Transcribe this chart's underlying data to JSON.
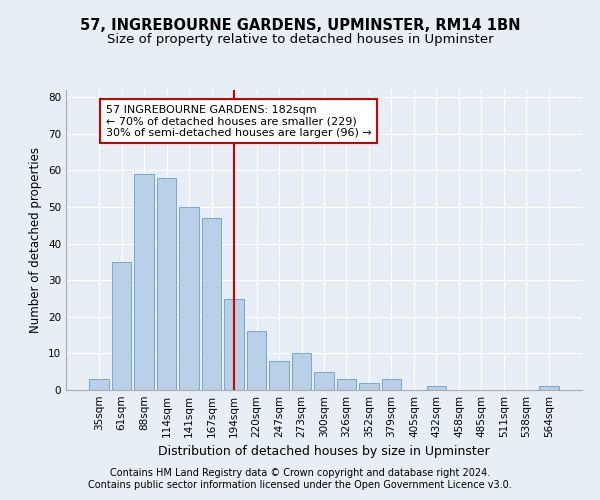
{
  "title1": "57, INGREBOURNE GARDENS, UPMINSTER, RM14 1BN",
  "title2": "Size of property relative to detached houses in Upminster",
  "xlabel": "Distribution of detached houses by size in Upminster",
  "ylabel": "Number of detached properties",
  "categories": [
    "35sqm",
    "61sqm",
    "88sqm",
    "114sqm",
    "141sqm",
    "167sqm",
    "194sqm",
    "220sqm",
    "247sqm",
    "273sqm",
    "300sqm",
    "326sqm",
    "352sqm",
    "379sqm",
    "405sqm",
    "432sqm",
    "458sqm",
    "485sqm",
    "511sqm",
    "538sqm",
    "564sqm"
  ],
  "values": [
    3,
    35,
    59,
    58,
    50,
    47,
    25,
    16,
    8,
    10,
    5,
    3,
    2,
    3,
    0,
    1,
    0,
    0,
    0,
    0,
    1
  ],
  "bar_color": "#b8d0e8",
  "bar_edge_color": "#6a9fc0",
  "vline_color": "#cc0000",
  "annotation_text": "57 INGREBOURNE GARDENS: 182sqm\n← 70% of detached houses are smaller (229)\n30% of semi-detached houses are larger (96) →",
  "annotation_box_color": "#ffffff",
  "annotation_box_edge": "#cc0000",
  "ylim": [
    0,
    82
  ],
  "yticks": [
    0,
    10,
    20,
    30,
    40,
    50,
    60,
    70,
    80
  ],
  "footnote1": "Contains HM Land Registry data © Crown copyright and database right 2024.",
  "footnote2": "Contains public sector information licensed under the Open Government Licence v3.0.",
  "background_color": "#e8eef6",
  "plot_bg_color": "#e8eef6",
  "title1_fontsize": 10.5,
  "title2_fontsize": 9.5,
  "xlabel_fontsize": 9,
  "ylabel_fontsize": 8.5,
  "tick_fontsize": 7.5,
  "annotation_fontsize": 8,
  "footnote_fontsize": 7
}
